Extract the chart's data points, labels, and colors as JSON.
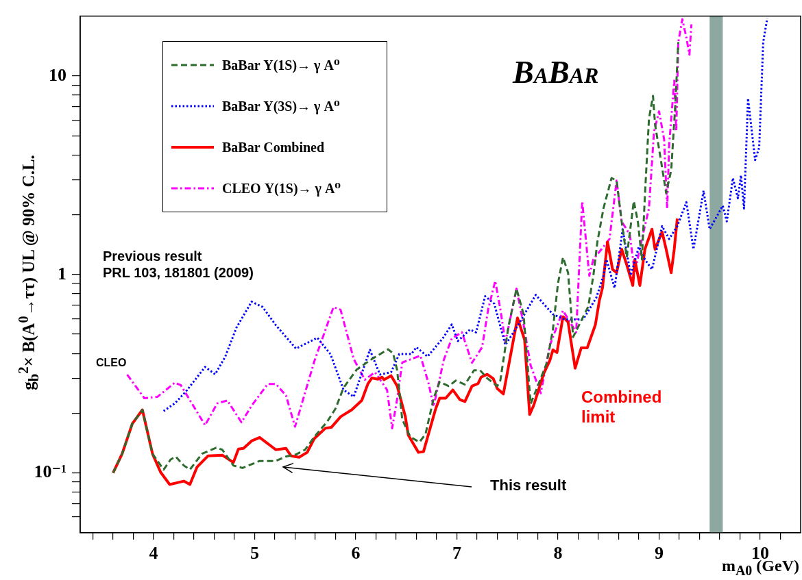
{
  "chart_data": {
    "type": "line",
    "xlabel": "m$_{A0}$ (GeV)",
    "ylabel": "g$_{b}$$^{2}$× B(A$^{0}$→ττ) UL @ 90% C.L.",
    "xlim": [
      3.275,
      10.4
    ],
    "ylim": [
      0.05,
      20
    ],
    "log": "y",
    "grid": false,
    "marker": "none",
    "legend": "top left",
    "xticks": [
      {
        "value": 3.4,
        "label": null
      },
      {
        "value": 3.6,
        "label": null
      },
      {
        "value": 3.8,
        "label": null
      },
      4,
      {
        "value": 4.2,
        "label": null
      },
      {
        "value": 4.4,
        "label": null
      },
      {
        "value": 4.6,
        "label": null
      },
      {
        "value": 4.8,
        "label": null
      },
      5,
      {
        "value": 5.2,
        "label": null
      },
      {
        "value": 5.4,
        "label": null
      },
      {
        "value": 5.6,
        "label": null
      },
      {
        "value": 5.8,
        "label": null
      },
      6,
      {
        "value": 6.2,
        "label": null
      },
      {
        "value": 6.4,
        "label": null
      },
      {
        "value": 6.6,
        "label": null
      },
      {
        "value": 6.8,
        "label": null
      },
      7,
      {
        "value": 7.2,
        "label": null
      },
      {
        "value": 7.4,
        "label": null
      },
      {
        "value": 7.6,
        "label": null
      },
      {
        "value": 7.8,
        "label": null
      },
      8,
      {
        "value": 8.2,
        "label": null
      },
      {
        "value": 8.4,
        "label": null
      },
      {
        "value": 8.6,
        "label": null
      },
      {
        "value": 8.8,
        "label": null
      },
      9,
      {
        "value": 9.2,
        "label": null
      },
      {
        "value": 9.4,
        "label": null
      },
      {
        "value": 9.6,
        "label": null
      },
      {
        "value": 9.8,
        "label": null
      },
      10,
      {
        "value": 10.2,
        "label": null
      }
    ],
    "yticks": [
      {
        "value": 0.06,
        "label": null
      },
      {
        "value": 0.07,
        "label": null
      },
      {
        "value": 0.08,
        "label": null
      },
      {
        "value": 0.09,
        "label": null
      },
      {
        "value": 0.1,
        "label": "10⁻¹"
      },
      {
        "value": 0.2,
        "label": null
      },
      {
        "value": 0.3,
        "label": null
      },
      {
        "value": 0.4,
        "label": null
      },
      {
        "value": 0.5,
        "label": null
      },
      {
        "value": 0.6,
        "label": null
      },
      {
        "value": 0.7,
        "label": null
      },
      {
        "value": 0.8,
        "label": null
      },
      {
        "value": 0.9,
        "label": null
      },
      1,
      {
        "value": 2,
        "label": null
      },
      {
        "value": 3,
        "label": null
      },
      {
        "value": 4,
        "label": null
      },
      {
        "value": 5,
        "label": null
      },
      {
        "value": 6,
        "label": null
      },
      {
        "value": 7,
        "label": null
      },
      {
        "value": 8,
        "label": null
      },
      {
        "value": 9,
        "label": null
      },
      10
    ],
    "bands": [
      {
        "axis": "x",
        "from": 9.5,
        "to": 9.63,
        "color": "#8ca8a0"
      }
    ],
    "series": [
      {
        "name": "BaBar Υ(1S)→ γ A⁰",
        "color": "#2e6b2e",
        "line_style": "dashed",
        "x": [
          3.6,
          3.69,
          3.79,
          3.89,
          3.99,
          4.1,
          4.17,
          4.22,
          4.3,
          4.36,
          4.48,
          4.62,
          4.68,
          4.79,
          4.88,
          5.05,
          5.21,
          5.31,
          5.41,
          5.5,
          5.59,
          5.72,
          5.8,
          5.88,
          6.01,
          6.16,
          6.32,
          6.37,
          6.41,
          6.46,
          6.54,
          6.63,
          6.69,
          6.77,
          6.83,
          6.92,
          6.99,
          7.08,
          7.17,
          7.23,
          7.3,
          7.4,
          7.43,
          7.51,
          7.59,
          7.66,
          7.73,
          7.79,
          7.89,
          7.95,
          8.0,
          8.05,
          8.1,
          8.15,
          8.2,
          8.3,
          8.35,
          8.39,
          8.45,
          8.53,
          8.58,
          8.63,
          8.68,
          8.75,
          8.79,
          8.83,
          8.86,
          8.9,
          8.94,
          8.96,
          9.03,
          9.07,
          9.12,
          9.16,
          9.19
        ],
        "values": [
          0.1,
          0.125,
          0.177,
          0.208,
          0.125,
          0.104,
          0.117,
          0.121,
          0.109,
          0.104,
          0.125,
          0.134,
          0.131,
          0.109,
          0.106,
          0.115,
          0.115,
          0.121,
          0.124,
          0.131,
          0.152,
          0.182,
          0.211,
          0.269,
          0.332,
          0.375,
          0.42,
          0.4,
          0.329,
          0.186,
          0.152,
          0.143,
          0.157,
          0.237,
          0.288,
          0.274,
          0.292,
          0.279,
          0.329,
          0.329,
          0.3,
          0.274,
          0.292,
          0.545,
          0.848,
          0.63,
          0.223,
          0.266,
          0.359,
          0.528,
          0.9,
          1.22,
          1.02,
          0.484,
          0.545,
          0.69,
          0.985,
          1.46,
          2.15,
          3.06,
          2.97,
          1.85,
          1.22,
          2.34,
          1.85,
          1.19,
          2.49,
          6.08,
          7.93,
          5.71,
          3.45,
          2.57,
          3.35,
          7.04,
          14.8
        ]
      },
      {
        "name": "BaBar Υ(3S)→ γ A⁰",
        "color": "#0000ff",
        "line_style": "dotted",
        "x": [
          4.1,
          4.21,
          4.32,
          4.51,
          4.61,
          4.71,
          4.82,
          4.97,
          5.08,
          5.21,
          5.41,
          5.62,
          5.75,
          5.88,
          5.98,
          6.14,
          6.24,
          6.35,
          6.43,
          6.55,
          6.6,
          6.71,
          6.86,
          6.95,
          7.01,
          7.13,
          7.19,
          7.28,
          7.37,
          7.48,
          7.61,
          7.78,
          7.95,
          8.07,
          8.25,
          8.38,
          8.45,
          8.48,
          8.56,
          8.64,
          8.72,
          8.8,
          8.86,
          8.93,
          9.03,
          9.1,
          9.18,
          9.27,
          9.34,
          9.44,
          9.5,
          9.63,
          9.67,
          9.73,
          9.78,
          9.81,
          9.84,
          9.88,
          9.95,
          9.99,
          10.03,
          10.07
        ],
        "values": [
          0.205,
          0.224,
          0.257,
          0.342,
          0.314,
          0.386,
          0.539,
          0.729,
          0.685,
          0.555,
          0.423,
          0.48,
          0.397,
          0.262,
          0.242,
          0.417,
          0.313,
          0.322,
          0.397,
          0.397,
          0.43,
          0.386,
          0.476,
          0.56,
          0.462,
          0.528,
          0.511,
          0.777,
          0.712,
          0.441,
          0.56,
          0.789,
          0.63,
          0.594,
          0.594,
          0.765,
          0.985,
          1.19,
          0.855,
          1.69,
          0.99,
          1.38,
          1.19,
          1.06,
          1.75,
          1.51,
          1.75,
          2.31,
          1.34,
          2.64,
          1.69,
          2.22,
          1.85,
          3.06,
          2.42,
          3.16,
          2.15,
          7.7,
          3.77,
          4.36,
          14.8,
          19.5
        ]
      },
      {
        "name": "BaBar Combined",
        "color": "#ff0000",
        "line_style": "solid",
        "x": [
          3.6,
          3.69,
          3.79,
          3.89,
          3.99,
          4.07,
          4.16,
          4.3,
          4.36,
          4.43,
          4.54,
          4.68,
          4.79,
          4.84,
          4.89,
          4.97,
          5.05,
          5.21,
          5.31,
          5.36,
          5.44,
          5.52,
          5.59,
          5.7,
          5.76,
          5.85,
          5.96,
          6.06,
          6.12,
          6.16,
          6.22,
          6.26,
          6.28,
          6.35,
          6.41,
          6.49,
          6.52,
          6.62,
          6.67,
          6.79,
          6.83,
          6.89,
          6.96,
          7.03,
          7.08,
          7.15,
          7.21,
          7.24,
          7.3,
          7.36,
          7.4,
          7.46,
          7.6,
          7.67,
          7.72,
          7.76,
          7.86,
          7.92,
          7.95,
          7.99,
          8.05,
          8.1,
          8.17,
          8.23,
          8.29,
          8.37,
          8.41,
          8.44,
          8.49,
          8.54,
          8.58,
          8.63,
          8.68,
          8.74,
          8.76,
          8.81,
          8.86,
          8.93,
          8.96,
          9.03,
          9.07,
          9.12,
          9.15,
          9.18
        ],
        "values": [
          0.1,
          0.125,
          0.177,
          0.208,
          0.125,
          0.101,
          0.0875,
          0.091,
          0.0875,
          0.107,
          0.122,
          0.123,
          0.113,
          0.132,
          0.133,
          0.145,
          0.151,
          0.131,
          0.133,
          0.122,
          0.12,
          0.127,
          0.149,
          0.168,
          0.17,
          0.192,
          0.208,
          0.232,
          0.281,
          0.301,
          0.297,
          0.304,
          0.295,
          0.309,
          0.274,
          0.193,
          0.155,
          0.127,
          0.128,
          0.21,
          0.238,
          0.238,
          0.262,
          0.234,
          0.229,
          0.274,
          0.282,
          0.304,
          0.314,
          0.299,
          0.266,
          0.25,
          0.604,
          0.469,
          0.197,
          0.219,
          0.318,
          0.369,
          0.417,
          0.404,
          0.613,
          0.576,
          0.337,
          0.427,
          0.427,
          0.558,
          0.741,
          0.855,
          1.46,
          1.06,
          1.02,
          1.34,
          1.12,
          0.88,
          1.19,
          0.88,
          1.34,
          1.69,
          1.34,
          1.64,
          1.34,
          1.02,
          1.34,
          1.91
        ]
      },
      {
        "name": "CLEO Υ(1S)→ γ A⁰",
        "color": "#ff00ff",
        "line_style": "dashdot",
        "x": [
          3.74,
          3.91,
          4.04,
          4.21,
          4.27,
          4.51,
          4.63,
          4.73,
          4.87,
          4.97,
          5.13,
          5.21,
          5.31,
          5.4,
          5.59,
          5.78,
          5.85,
          5.98,
          6.09,
          6.19,
          6.31,
          6.36,
          6.41,
          6.46,
          6.52,
          6.64,
          6.72,
          6.77,
          6.87,
          6.95,
          7.05,
          7.15,
          7.25,
          7.31,
          7.38,
          7.43,
          7.48,
          7.59,
          7.66,
          7.73,
          7.83,
          7.92,
          8.05,
          8.18,
          8.24,
          8.31,
          8.35,
          8.43,
          8.51,
          8.58,
          8.63,
          8.71,
          8.76,
          8.83,
          8.9,
          8.95,
          9.0,
          9.05,
          9.08,
          9.1,
          9.15,
          9.17,
          9.19,
          9.23,
          9.27,
          9.3,
          9.32
        ],
        "values": [
          0.313,
          0.238,
          0.242,
          0.285,
          0.277,
          0.174,
          0.224,
          0.232,
          0.18,
          0.218,
          0.281,
          0.281,
          0.246,
          0.171,
          0.365,
          0.685,
          0.664,
          0.375,
          0.295,
          0.322,
          0.262,
          0.168,
          0.236,
          0.36,
          0.37,
          0.39,
          0.283,
          0.216,
          0.37,
          0.476,
          0.511,
          0.359,
          0.43,
          0.669,
          0.928,
          0.669,
          0.455,
          0.848,
          0.56,
          0.348,
          0.252,
          0.441,
          0.658,
          0.511,
          2.34,
          0.985,
          1.19,
          1.34,
          1.51,
          2.97,
          1.85,
          1.59,
          1.02,
          1.51,
          2.15,
          5.25,
          6.63,
          4.79,
          2.15,
          4.51,
          9.47,
          5.25,
          14.8,
          19.3,
          15.6,
          12.8,
          18.2
        ]
      }
    ],
    "annotations": [
      "BaBar",
      "Previous result\nPRL 103, 181801 (2009)",
      "CLEO",
      "Combined\nlimit",
      "This result"
    ]
  }
}
